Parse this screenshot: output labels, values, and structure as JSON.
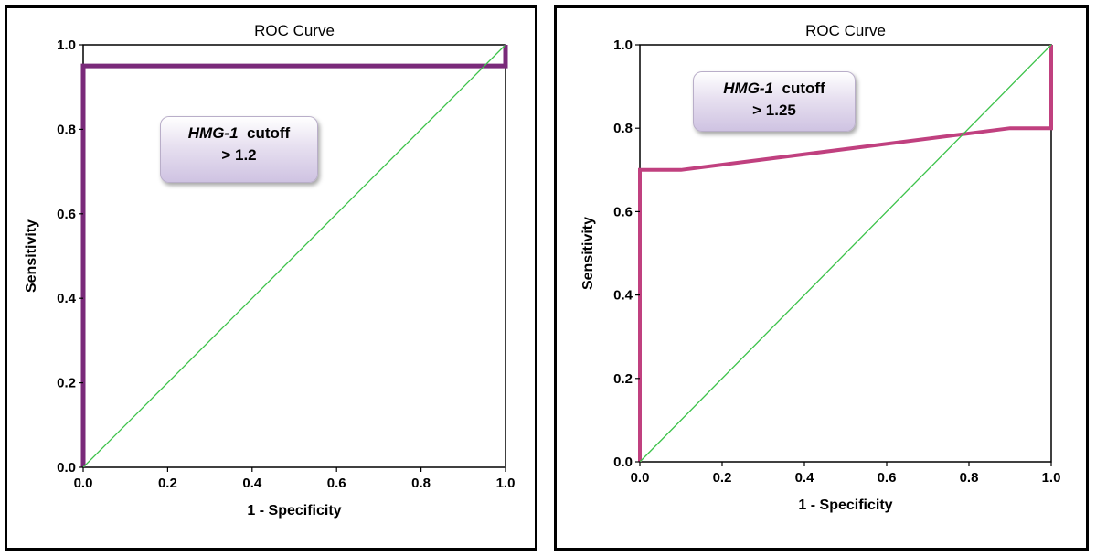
{
  "chart_data": [
    {
      "type": "line",
      "title": "ROC Curve",
      "xlabel": "1 - Specificity",
      "ylabel": "Sensitivity",
      "xlim": [
        0,
        1
      ],
      "ylim": [
        0,
        1
      ],
      "xticks": [
        "0.0",
        "0.2",
        "0.4",
        "0.6",
        "0.8",
        "1.0"
      ],
      "yticks": [
        "0.0",
        "0.2",
        "0.4",
        "0.6",
        "0.8",
        "1.0"
      ],
      "grid": false,
      "annotation": {
        "marker": "HMG-1",
        "label": "cutoff",
        "value": "> 1.2"
      },
      "series": [
        {
          "color": "#7a2a7a",
          "width": 5,
          "x": [
            0,
            0,
            1,
            1
          ],
          "y": [
            0,
            0.95,
            0.95,
            1
          ]
        },
        {
          "color": "#3cc24a",
          "width": 1.3,
          "x": [
            0,
            1
          ],
          "y": [
            0,
            1
          ]
        }
      ]
    },
    {
      "type": "line",
      "title": "ROC Curve",
      "xlabel": "1 - Specificity",
      "ylabel": "Sensitivity",
      "xlim": [
        0,
        1
      ],
      "ylim": [
        0,
        1
      ],
      "xticks": [
        "0.0",
        "0.2",
        "0.4",
        "0.6",
        "0.8",
        "1.0"
      ],
      "yticks": [
        "0.0",
        "0.2",
        "0.4",
        "0.6",
        "0.8",
        "1.0"
      ],
      "grid": false,
      "annotation": {
        "marker": "HMG-1",
        "label": "cutoff",
        "value": "> 1.25"
      },
      "series": [
        {
          "color": "#c0407f",
          "width": 4,
          "x": [
            0,
            0,
            0.1,
            0.9,
            1,
            1
          ],
          "y": [
            0,
            0.7,
            0.7,
            0.8,
            0.8,
            1
          ]
        },
        {
          "color": "#3cc24a",
          "width": 1.3,
          "x": [
            0,
            1
          ],
          "y": [
            0,
            1
          ]
        }
      ]
    }
  ]
}
